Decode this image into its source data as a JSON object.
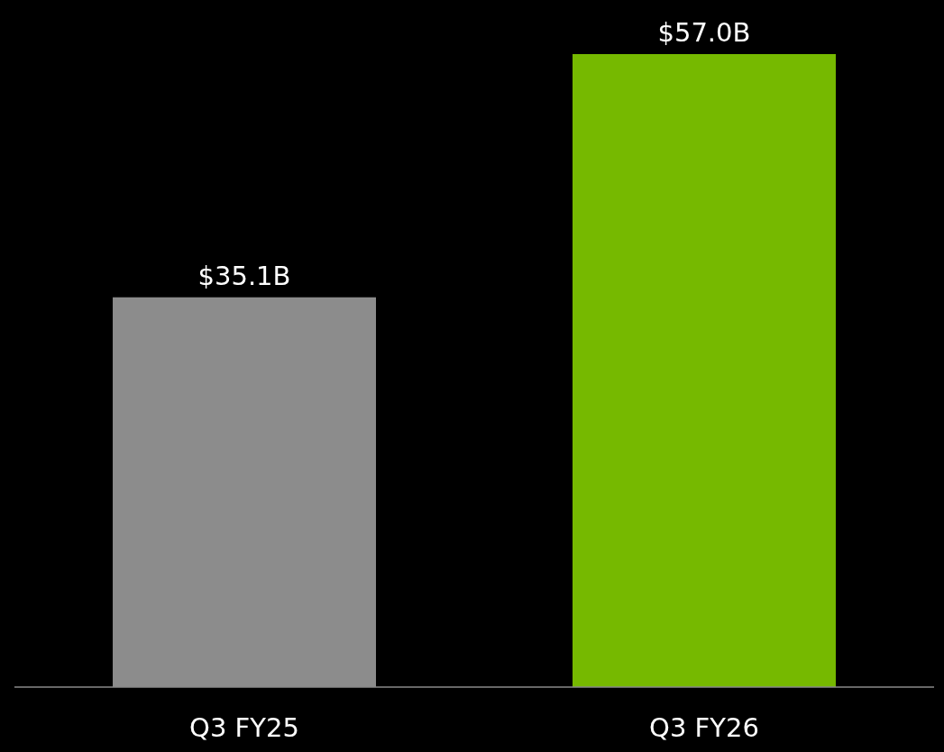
{
  "chart_data": {
    "type": "bar",
    "categories": [
      "Q3 FY25",
      "Q3 FY26"
    ],
    "values": [
      35.1,
      57.0
    ],
    "colors": [
      "#8c8c8c",
      "#76b900"
    ],
    "value_labels": [
      "$35.1B",
      "$57.0B"
    ]
  }
}
